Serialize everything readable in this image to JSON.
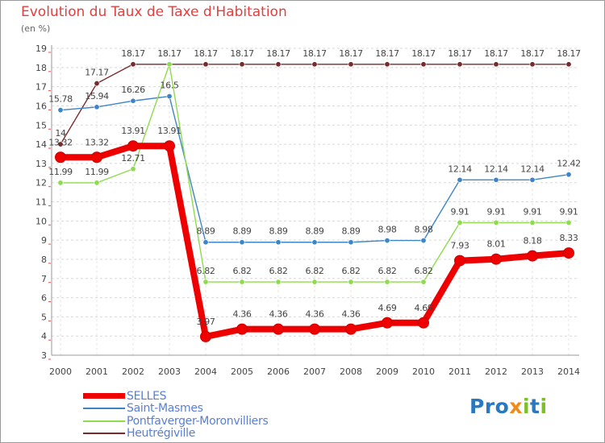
{
  "title": "Evolution du Taux de Taxe d'Habitation",
  "subtitle": "(en %)",
  "logo": {
    "text": "Proxiti",
    "part1": "Pro",
    "part2": "x",
    "part3": "i",
    "part4": "t",
    "part5": "i"
  },
  "chart_data": {
    "type": "line",
    "title": "Evolution du Taux de Taxe d'Habitation",
    "ylabel": "(en %)",
    "xlabel": "",
    "ylim": [
      3,
      19
    ],
    "yticks": [
      3,
      4,
      5,
      6,
      7,
      8,
      9,
      10,
      11,
      12,
      13,
      14,
      15,
      16,
      17,
      18,
      19
    ],
    "grid": true,
    "legend": "bottom-left",
    "categories": [
      "2000",
      "2001",
      "2002",
      "2003",
      "2004",
      "2005",
      "2006",
      "2007",
      "2008",
      "2009",
      "2010",
      "2011",
      "2012",
      "2013",
      "2014"
    ],
    "series": [
      {
        "name": "Heutrégiville",
        "color": "#7a2a2a",
        "values": [
          14,
          17.17,
          18.17,
          18.17,
          18.17,
          18.17,
          18.17,
          18.17,
          18.17,
          18.17,
          18.17,
          18.17,
          18.17,
          18.17,
          18.17
        ],
        "labels": [
          "14",
          "17.17",
          "18.17",
          "18.17",
          "18.17",
          "18.17",
          "18.17",
          "18.17",
          "18.17",
          "18.17",
          "18.17",
          "18.17",
          "18.17",
          "18.17",
          "18.17"
        ]
      },
      {
        "name": "Saint-Masmes",
        "color": "#3d85c6",
        "values": [
          15.78,
          15.94,
          16.26,
          16.5,
          8.89,
          8.89,
          8.89,
          8.89,
          8.89,
          8.98,
          8.98,
          12.14,
          12.14,
          12.14,
          12.42
        ],
        "labels": [
          "15.78",
          "15.94",
          "16.26",
          "16.5",
          "8.89",
          "8.89",
          "8.89",
          "8.89",
          "8.89",
          "8.98",
          "8.98",
          "12.14",
          "12.14",
          "12.14",
          "12.42"
        ]
      },
      {
        "name": "Pontfaverger-Moronvilliers",
        "color": "#8fdb4f",
        "values": [
          11.99,
          11.99,
          12.71,
          18.17,
          6.82,
          6.82,
          6.82,
          6.82,
          6.82,
          6.82,
          6.82,
          9.91,
          9.91,
          9.91,
          9.91
        ],
        "labels": [
          "11.99",
          "11.99",
          "12.71",
          "",
          "6.82",
          "6.82",
          "6.82",
          "6.82",
          "6.82",
          "6.82",
          "6.82",
          "9.91",
          "9.91",
          "9.91",
          "9.91"
        ]
      },
      {
        "name": "SELLES",
        "color": "#ee0000",
        "values": [
          13.32,
          13.32,
          13.91,
          13.91,
          3.97,
          4.36,
          4.36,
          4.36,
          4.36,
          4.69,
          4.69,
          7.93,
          8.01,
          8.18,
          8.33
        ],
        "labels": [
          "13.32",
          "13.32",
          "13.91",
          "13.91",
          "3.97",
          "4.36",
          "4.36",
          "4.36",
          "4.36",
          "4.69",
          "4.69",
          "7.93",
          "8.01",
          "8.18",
          "8.33"
        ]
      }
    ],
    "legend_order": [
      "SELLES",
      "Saint-Masmes",
      "Pontfaverger-Moronvilliers",
      "Heutrégiville"
    ]
  }
}
